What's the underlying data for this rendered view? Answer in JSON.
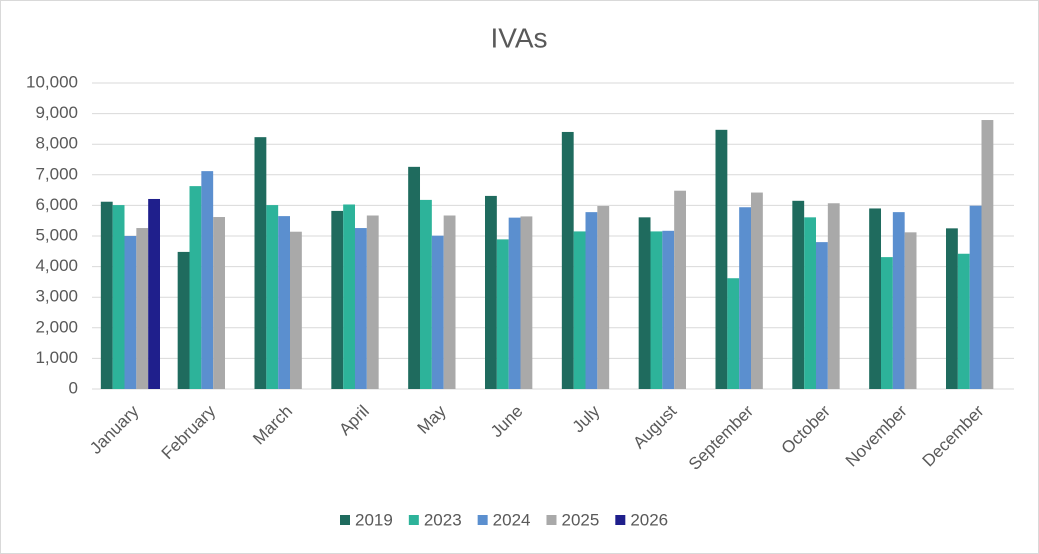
{
  "chart_data": {
    "type": "bar",
    "title": "IVAs",
    "categories": [
      "January",
      "February",
      "March",
      "April",
      "May",
      "June",
      "July",
      "August",
      "September",
      "October",
      "November",
      "December"
    ],
    "series": [
      {
        "name": "2019",
        "color": "#1f6b5e",
        "values": [
          6120,
          4480,
          8230,
          5820,
          7260,
          6310,
          8400,
          5610,
          8470,
          6150,
          5900,
          5250
        ]
      },
      {
        "name": "2023",
        "color": "#2db39a",
        "values": [
          6010,
          6630,
          6010,
          6030,
          6180,
          4890,
          5150,
          5150,
          3620,
          5610,
          4310,
          4420
        ]
      },
      {
        "name": "2024",
        "color": "#5b8fcf",
        "values": [
          5000,
          7120,
          5650,
          5260,
          5010,
          5600,
          5780,
          5170,
          5940,
          4800,
          5780,
          5990
        ]
      },
      {
        "name": "2025",
        "color": "#a9a9a9",
        "values": [
          5260,
          5620,
          5140,
          5670,
          5670,
          5640,
          5980,
          6480,
          6420,
          6070,
          5120,
          8790
        ]
      },
      {
        "name": "2026",
        "color": "#1f1f8c",
        "values": [
          6210,
          null,
          null,
          null,
          null,
          null,
          null,
          null,
          null,
          null,
          null,
          null
        ]
      }
    ],
    "ylim": [
      0,
      10000
    ],
    "yticks": [
      0,
      {
        "value": 1000,
        "label": "1,000"
      },
      {
        "value": 2000,
        "label": "2,000"
      },
      {
        "value": 3000,
        "label": "3,000"
      },
      {
        "value": 4000,
        "label": "4,000"
      },
      {
        "value": 5000,
        "label": "5,000"
      },
      {
        "value": 6000,
        "label": "6,000"
      },
      {
        "value": 7000,
        "label": "7,000"
      },
      {
        "value": 8000,
        "label": "8,000"
      },
      {
        "value": 9000,
        "label": "9,000"
      },
      {
        "value": 10000,
        "label": "10,000"
      }
    ],
    "grid": true,
    "legend": "bottom"
  }
}
